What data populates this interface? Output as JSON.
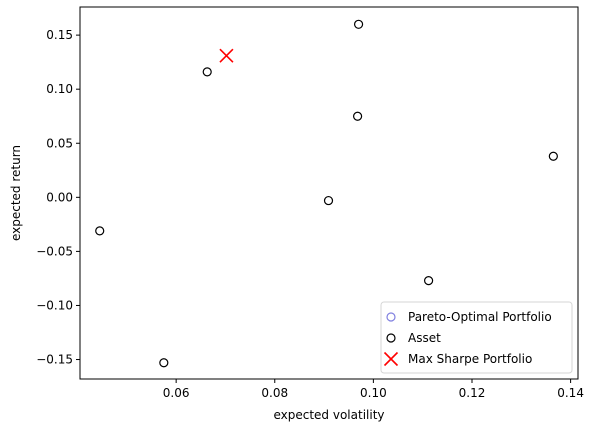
{
  "chart_data": {
    "type": "scatter",
    "title": "",
    "xlabel": "expected volatility",
    "ylabel": "expected return",
    "xlim": [
      0.0405,
      0.1415
    ],
    "ylim": [
      -0.168,
      0.176
    ],
    "xticks": [
      0.06,
      0.08,
      0.1,
      0.12,
      0.14
    ],
    "yticks": [
      -0.15,
      -0.1,
      -0.05,
      0.0,
      0.05,
      0.1,
      0.15
    ],
    "xtick_labels": [
      "0.06",
      "0.08",
      "0.10",
      "0.12",
      "0.14"
    ],
    "ytick_labels": [
      "−0.15",
      "−0.10",
      "−0.05",
      "0.00",
      "0.05",
      "0.10",
      "0.15"
    ],
    "grid": false,
    "legend_position": "bottom-right",
    "series": [
      {
        "name": "Pareto-Optimal Portfolio",
        "marker": "open-circle",
        "color": "#8080e0",
        "points": []
      },
      {
        "name": "Asset",
        "marker": "open-circle",
        "color": "#000000",
        "points": [
          {
            "x": 0.0445,
            "y": -0.031
          },
          {
            "x": 0.0575,
            "y": -0.153
          },
          {
            "x": 0.0663,
            "y": 0.116
          },
          {
            "x": 0.0909,
            "y": -0.003
          },
          {
            "x": 0.0968,
            "y": 0.075
          },
          {
            "x": 0.097,
            "y": 0.16
          },
          {
            "x": 0.1112,
            "y": -0.077
          },
          {
            "x": 0.1365,
            "y": 0.038
          }
        ]
      },
      {
        "name": "Max Sharpe Portfolio",
        "marker": "x",
        "color": "#ff0000",
        "points": [
          {
            "x": 0.0702,
            "y": 0.131
          }
        ]
      }
    ]
  }
}
